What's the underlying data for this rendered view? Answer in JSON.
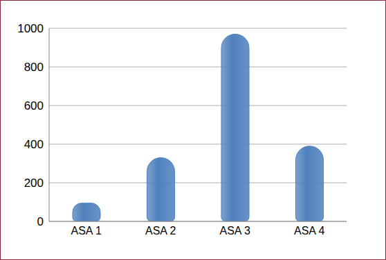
{
  "chart_data": {
    "type": "bar",
    "categories": [
      "ASA 1",
      "ASA 2",
      "ASA 3",
      "ASA 4"
    ],
    "values": [
      95,
      330,
      970,
      390
    ],
    "color": "#4f81bd",
    "ylim": [
      0,
      1000
    ],
    "yticks": [
      0,
      200,
      400,
      600,
      800,
      1000
    ],
    "grid": true
  }
}
